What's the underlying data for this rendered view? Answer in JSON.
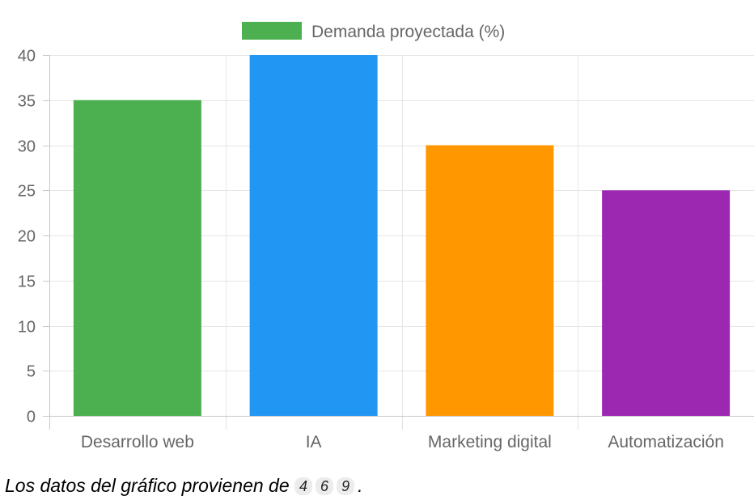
{
  "chart_data": {
    "type": "bar",
    "categories": [
      "Desarrollo web",
      "IA",
      "Marketing digital",
      "Automatización"
    ],
    "series": [
      {
        "name": "Demanda proyectada (%)",
        "values": [
          35,
          40,
          30,
          25
        ],
        "colors": [
          "#4caf50",
          "#2196f3",
          "#ff9800",
          "#9c27b0"
        ]
      }
    ],
    "y_ticks": [
      0,
      5,
      10,
      15,
      20,
      25,
      30,
      35,
      40
    ],
    "ylim": [
      0,
      40
    ],
    "grid": true,
    "legend_position": "top-center",
    "legend_color": "#4caf50"
  },
  "caption": {
    "text": "Los datos del gráfico provienen de",
    "refs": [
      "4",
      "6",
      "9"
    ],
    "end": "."
  }
}
